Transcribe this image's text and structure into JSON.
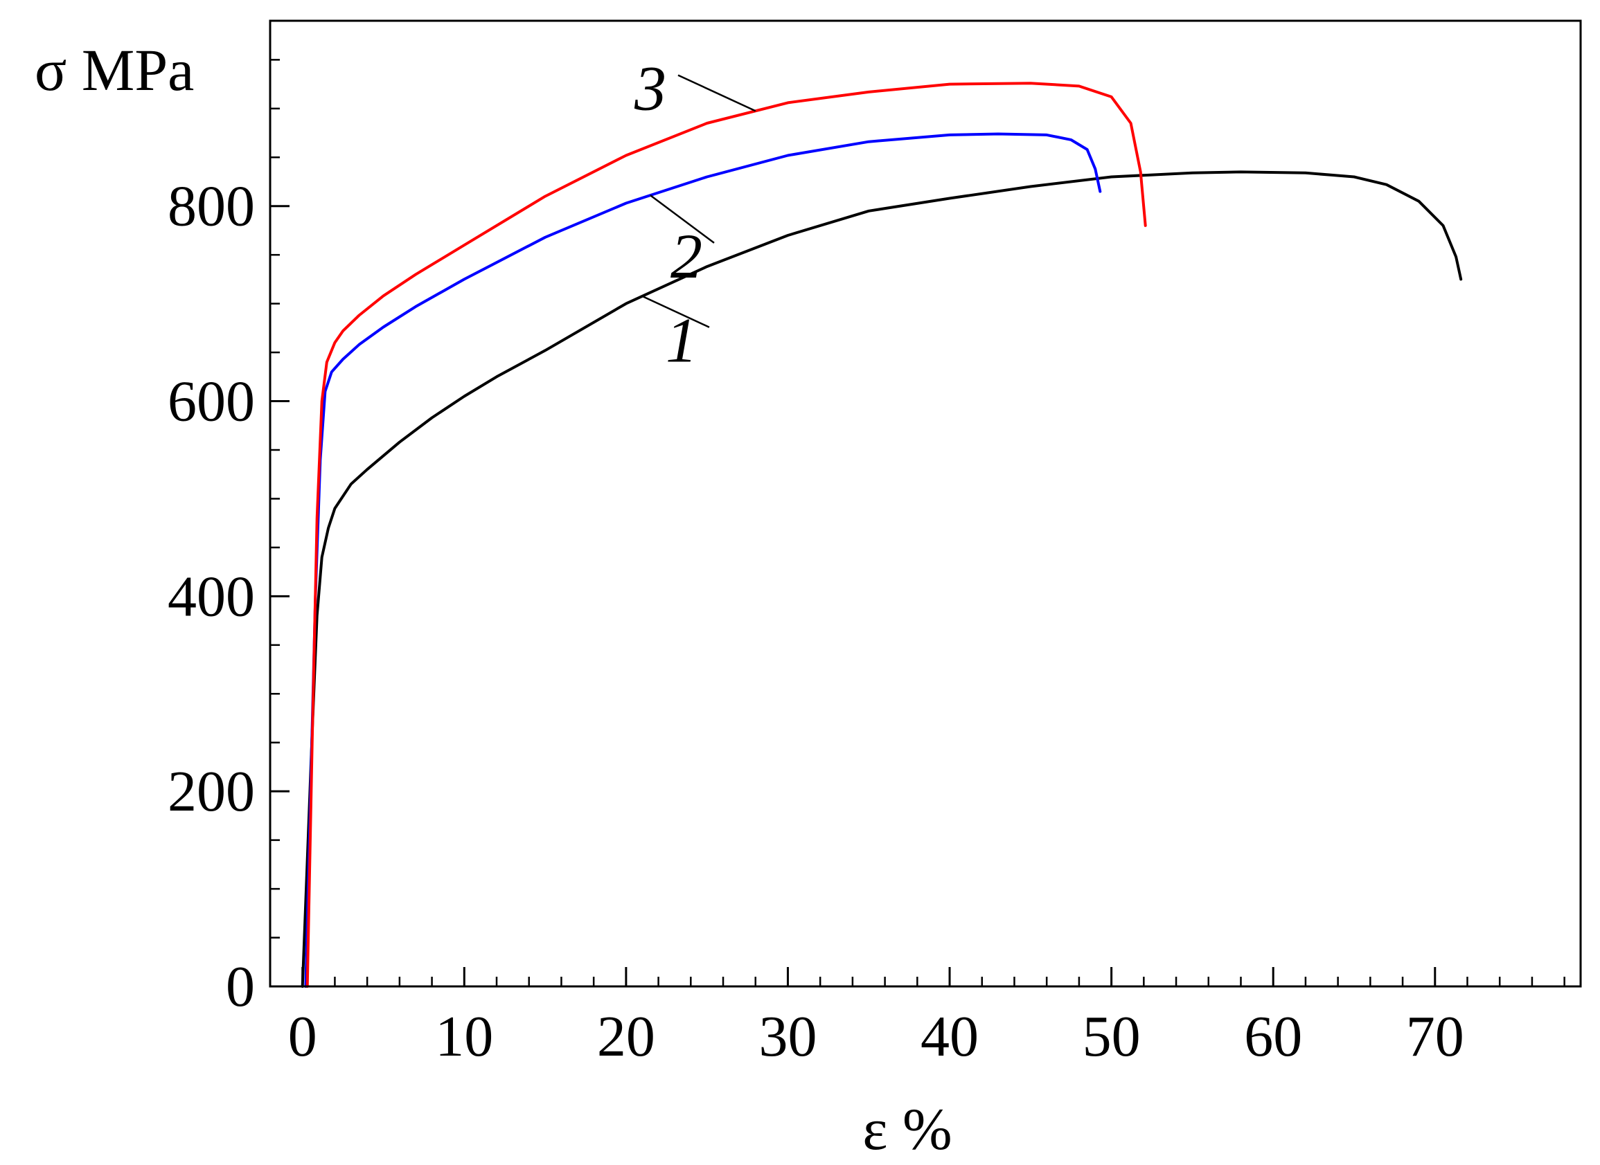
{
  "chart_data": {
    "type": "line",
    "title": "",
    "xlabel": "ε %",
    "ylabel": "σ MPa",
    "xlim": [
      -2,
      79
    ],
    "ylim": [
      0,
      990
    ],
    "xticks": [
      0,
      10,
      20,
      30,
      40,
      50,
      60,
      70
    ],
    "xtick_labels": [
      "0",
      "10",
      "20",
      "30",
      "40",
      "50",
      "60",
      "70"
    ],
    "yticks": [
      0,
      200,
      400,
      600,
      800
    ],
    "ytick_labels": [
      "0",
      "200",
      "400",
      "600",
      "800"
    ],
    "grid": false,
    "legend": "none",
    "series": [
      {
        "name": "1",
        "color": "#000000",
        "x": [
          0,
          0.3,
          0.6,
          0.9,
          1.2,
          1.6,
          2.0,
          3.0,
          4.0,
          6.0,
          8.0,
          10.0,
          12.0,
          15.0,
          20.0,
          25.0,
          30.0,
          35.0,
          40.0,
          45.0,
          50.0,
          55.0,
          58.0,
          62.0,
          65.0,
          67.0,
          69.0,
          70.5,
          71.3,
          71.6
        ],
        "y": [
          0,
          130,
          260,
          380,
          440,
          470,
          490,
          515,
          530,
          558,
          583,
          605,
          625,
          652,
          700,
          738,
          770,
          795,
          808,
          820,
          830,
          834,
          835,
          834,
          830,
          822,
          805,
          780,
          748,
          725
        ]
      },
      {
        "name": "2",
        "color": "#0000ff",
        "x": [
          0.2,
          0.5,
          0.8,
          1.1,
          1.4,
          1.8,
          2.5,
          3.5,
          5.0,
          7.0,
          10.0,
          15.0,
          20.0,
          25.0,
          30.0,
          35.0,
          40.0,
          43.0,
          46.0,
          47.5,
          48.5,
          49.0,
          49.3
        ],
        "y": [
          0,
          200,
          400,
          540,
          610,
          630,
          643,
          658,
          676,
          697,
          725,
          768,
          803,
          830,
          852,
          866,
          873,
          874,
          873,
          868,
          858,
          838,
          815
        ]
      },
      {
        "name": "3",
        "color": "#ff0000",
        "x": [
          0.3,
          0.6,
          0.9,
          1.2,
          1.5,
          2.0,
          2.5,
          3.5,
          5.0,
          7.0,
          10.0,
          15.0,
          20.0,
          25.0,
          30.0,
          35.0,
          40.0,
          45.0,
          48.0,
          50.0,
          51.2,
          51.8,
          52.1
        ],
        "y": [
          0,
          250,
          480,
          600,
          640,
          660,
          672,
          688,
          708,
          730,
          760,
          810,
          852,
          885,
          906,
          917,
          925,
          926,
          923,
          912,
          885,
          835,
          780
        ]
      }
    ],
    "annotations": [
      {
        "text": "3",
        "series": "3",
        "x": 24.5,
        "y": 920
      },
      {
        "text": "2",
        "series": "2",
        "x": 24.5,
        "y": 780
      },
      {
        "text": "1",
        "series": "1",
        "x": 24.5,
        "y": 690
      }
    ]
  }
}
